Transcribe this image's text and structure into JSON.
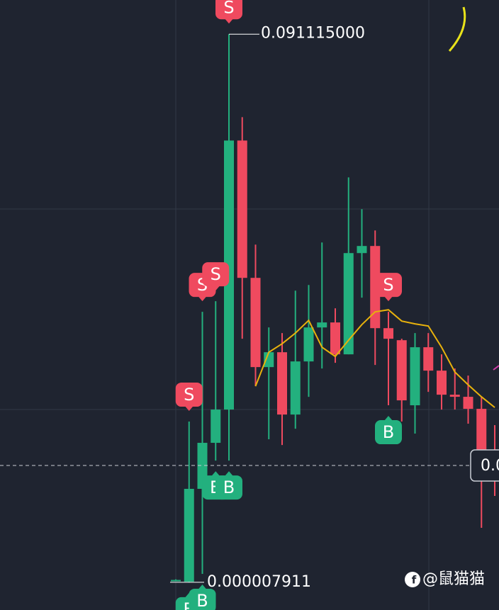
{
  "chart_data": {
    "type": "candlestick",
    "open": [
      0.0004,
      0.0001,
      0.01554,
      0.02319,
      0.02872,
      0.07344,
      0.05061,
      0.03578,
      0.03825,
      0.02789,
      0.03672,
      0.04237,
      0.0432,
      0.0379,
      0.05473,
      0.05591,
      0.04225,
      0.04025,
      0.02943,
      0.03908,
      0.03519,
      0.03119,
      0.03084,
      0.02884,
      0.02201
    ],
    "high": [
      0.0005,
      0.02672,
      0.04496,
      0.04673,
      0.091115,
      0.07733,
      0.05614,
      0.04237,
      0.04143,
      0.04849,
      0.04943,
      0.0565,
      0.04555,
      0.06732,
      0.06203,
      0.0585,
      0.04496,
      0.04049,
      0.04143,
      0.04143,
      0.0379,
      0.03555,
      0.03437,
      0.03084,
      0.02613
    ],
    "low": [
      0.0003,
      7.911e-06,
      0.00141,
      0.02024,
      0.02024,
      0.04049,
      0.0326,
      0.02378,
      0.02283,
      0.02554,
      0.03084,
      0.03555,
      0.03649,
      0.0379,
      0.04732,
      0.03613,
      0.02943,
      0.02672,
      0.02472,
      0.03166,
      0.02872,
      0.02872,
      0.02637,
      0.00906,
      0.01436
    ],
    "close": [
      0.0004,
      0.01554,
      0.02319,
      0.02872,
      0.07344,
      0.05061,
      0.03578,
      0.03825,
      0.02789,
      0.03672,
      0.04237,
      0.0432,
      0.0379,
      0.05473,
      0.05591,
      0.04225,
      0.04049,
      0.03025,
      0.03908,
      0.03519,
      0.03119,
      0.03084,
      0.02884,
      0.02201,
      0.01907
    ],
    "ma": {
      "color": "#e8b20c",
      "values": [
        null,
        null,
        null,
        null,
        null,
        null,
        0.0326,
        0.03825,
        0.03966,
        0.04143,
        0.04355,
        0.03908,
        0.03755,
        0.04025,
        0.04284,
        0.04496,
        0.04531,
        0.04343,
        0.04296,
        0.04261,
        0.03908,
        0.03496,
        0.03284,
        0.03084,
        0.02907
      ]
    },
    "up_color": "#23b07e",
    "down_color": "#ef4a5f",
    "ylim": [
      -0.0046,
      0.0968
    ],
    "high_annotation": {
      "value": 0.091115,
      "label": "0.091115000"
    },
    "low_annotation": {
      "value": 7.911e-06,
      "label": "0.000007911"
    },
    "current_price": {
      "value": 0.01942,
      "label": "0.0"
    },
    "signals": [
      {
        "label": "S",
        "index": 4
      },
      {
        "label": "S",
        "index": 2
      },
      {
        "label": "S",
        "index": 3
      },
      {
        "label": "S",
        "index": 1
      },
      {
        "label": "S",
        "index": 16
      },
      {
        "label": "B",
        "index": 3
      },
      {
        "label": "B",
        "index": 4
      },
      {
        "label": "B",
        "index": 16
      },
      {
        "label": "B",
        "index": 1
      },
      {
        "label": "B",
        "index": 2
      }
    ],
    "watermark": "@鼠猫猫"
  }
}
